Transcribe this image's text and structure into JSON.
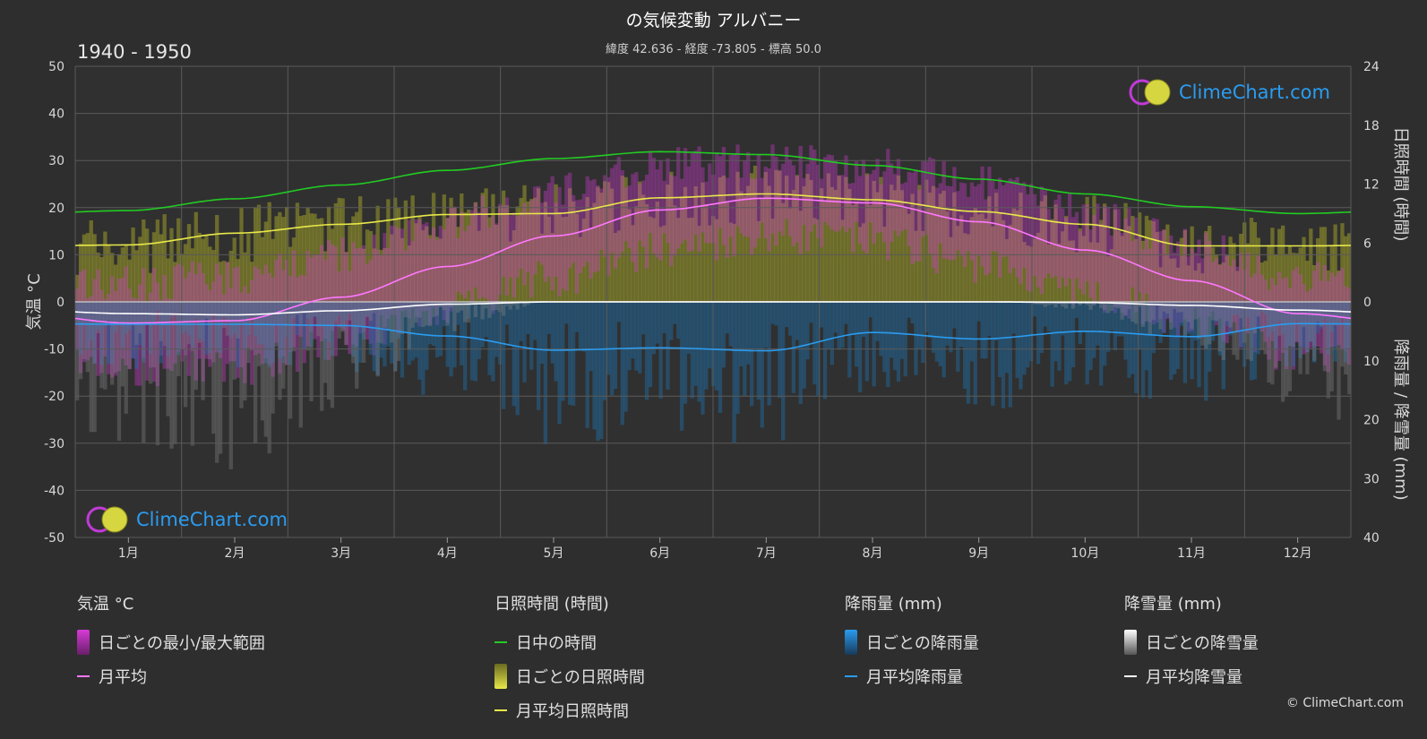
{
  "header": {
    "title": "の気候変動 アルバニー",
    "subtitle": "緯度 42.636 - 経度 -73.805 - 標高 50.0",
    "period": "1940 - 1950"
  },
  "brand": {
    "logo_text": "ClimeChart.com",
    "copyright": "© ClimeChart.com"
  },
  "colors": {
    "background": "#2e2e2e",
    "daylight": "#22cc22",
    "sunshine_mean": "#e8e84a",
    "sunshine_bar": "#9c9c2a",
    "temp_range": "#d63bd6",
    "temp_mean": "#ff77ff",
    "rain_mean": "#2b9cf0",
    "rain_bar": "#1f6fa8",
    "snow_mean": "#ffffff",
    "snow_bar": "#8a8a8a",
    "logo_text": "#2b9cf0"
  },
  "chart_data": {
    "type": "line",
    "x": [
      "1月",
      "2月",
      "3月",
      "4月",
      "5月",
      "6月",
      "7月",
      "8月",
      "9月",
      "10月",
      "11月",
      "12月"
    ],
    "axes": {
      "left": {
        "label": "気温 °C",
        "range": [
          -50,
          50
        ],
        "ticks": [
          50,
          40,
          30,
          20,
          10,
          0,
          -10,
          -20,
          -30,
          -40,
          -50
        ]
      },
      "right_top": {
        "label": "日照時間 (時間)",
        "range": [
          0,
          24
        ],
        "ticks": [
          24,
          18,
          12,
          6,
          0
        ]
      },
      "right_bottom": {
        "label": "降雨量 / 降雪量 (mm)",
        "range": [
          0,
          40
        ],
        "ticks": [
          0,
          10,
          20,
          30,
          40
        ]
      }
    },
    "grid": true,
    "series": [
      {
        "name": "日中の時間",
        "axis": "hours",
        "values": [
          9.3,
          10.5,
          11.9,
          13.4,
          14.6,
          15.3,
          15.0,
          13.9,
          12.5,
          11.0,
          9.7,
          9.0
        ]
      },
      {
        "name": "月平均日照時間",
        "axis": "hours",
        "values": [
          5.8,
          7.0,
          7.9,
          8.9,
          9.0,
          10.6,
          11.0,
          10.4,
          9.2,
          7.9,
          5.7,
          5.7
        ]
      },
      {
        "name": "月平均",
        "axis": "temp",
        "values": [
          -4.5,
          -4.0,
          1.0,
          7.5,
          14.0,
          19.5,
          22.0,
          21.0,
          17.0,
          11.0,
          4.5,
          -2.5
        ]
      },
      {
        "name": "月平均降雨量",
        "axis": "precip",
        "values": [
          3.8,
          3.8,
          4.0,
          5.8,
          8.2,
          7.8,
          8.3,
          5.2,
          6.3,
          5.0,
          5.9,
          3.7
        ]
      },
      {
        "name": "月平均降雪量",
        "axis": "precip",
        "values": [
          2.0,
          2.2,
          1.5,
          0.4,
          0.0,
          0.0,
          0.0,
          0.0,
          0.0,
          0.1,
          0.6,
          1.4
        ]
      }
    ],
    "daily_temp_range": {
      "name": "日ごとの最小/最大範囲",
      "min": [
        -15,
        -14,
        -9,
        -2,
        5,
        11,
        14,
        13,
        8,
        2,
        -4,
        -12
      ],
      "max": [
        4,
        5,
        10,
        17,
        24,
        29,
        30,
        29,
        25,
        19,
        12,
        5
      ]
    }
  },
  "legend": {
    "groups": [
      {
        "title": "気温 °C",
        "items": [
          {
            "label": "日ごとの最小/最大範囲",
            "kind": "box",
            "color": "#d63bd6"
          },
          {
            "label": "月平均",
            "kind": "line",
            "color": "#ff77ff"
          }
        ]
      },
      {
        "title": "日照時間 (時間)",
        "items": [
          {
            "label": "日中の時間",
            "kind": "line",
            "color": "#22cc22"
          },
          {
            "label": "日ごとの日照時間",
            "kind": "box",
            "color": "#c8c83a"
          },
          {
            "label": "月平均日照時間",
            "kind": "line",
            "color": "#e8e84a"
          }
        ]
      },
      {
        "title": "降雨量 (mm)",
        "items": [
          {
            "label": "日ごとの降雨量",
            "kind": "box",
            "color": "#2b7ec8"
          },
          {
            "label": "月平均降雨量",
            "kind": "line",
            "color": "#2b9cf0"
          }
        ]
      },
      {
        "title": "降雪量 (mm)",
        "items": [
          {
            "label": "日ごとの降雪量",
            "kind": "box",
            "color": "#d8d8d8"
          },
          {
            "label": "月平均降雪量",
            "kind": "line",
            "color": "#ffffff"
          }
        ]
      }
    ]
  }
}
